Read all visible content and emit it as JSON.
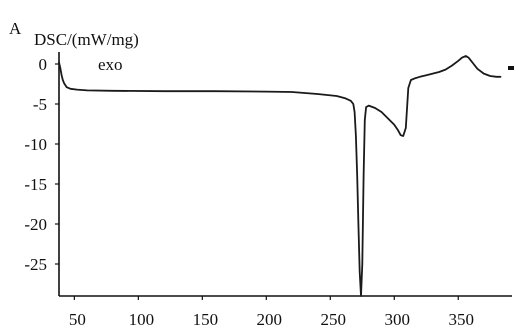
{
  "chart_data": {
    "type": "line",
    "panel_label": "A",
    "ylabel": "DSC/(mW/mg)",
    "annotation": "exo",
    "xlabel": "",
    "xlim": [
      38,
      392
    ],
    "ylim": [
      -29,
      1.5
    ],
    "xticks": [
      50,
      100,
      150,
      200,
      250,
      300,
      350
    ],
    "yticks": [
      0,
      -5,
      -10,
      -15,
      -20,
      -25
    ],
    "grid": false,
    "line_color": "#1a1a1a",
    "series": [
      {
        "x": [
          38,
          39,
          40,
          41,
          42,
          44,
          47,
          52,
          60,
          80,
          120,
          160,
          200,
          220,
          240,
          255,
          262,
          266,
          268,
          269,
          270,
          271,
          272,
          273,
          274,
          275,
          276,
          277,
          278,
          279,
          280,
          285,
          290,
          295,
          300,
          303,
          305,
          307,
          309,
          311,
          313,
          316,
          320,
          325,
          330,
          335,
          340,
          345,
          350,
          353,
          356,
          358,
          360,
          362,
          365,
          370,
          375,
          380,
          383
        ],
        "y": [
          0.2,
          -0.5,
          -1.4,
          -2.0,
          -2.4,
          -2.9,
          -3.1,
          -3.2,
          -3.3,
          -3.35,
          -3.4,
          -3.4,
          -3.45,
          -3.5,
          -3.75,
          -4.0,
          -4.3,
          -4.6,
          -5.0,
          -6.0,
          -9.0,
          -14.0,
          -20.0,
          -26.0,
          -29.0,
          -25.0,
          -14.0,
          -7.0,
          -5.4,
          -5.3,
          -5.2,
          -5.5,
          -6.0,
          -6.8,
          -7.6,
          -8.3,
          -8.9,
          -9.0,
          -8.0,
          -3.0,
          -2.0,
          -1.8,
          -1.6,
          -1.4,
          -1.2,
          -1.0,
          -0.7,
          -0.2,
          0.4,
          0.8,
          1.0,
          0.8,
          0.4,
          0.0,
          -0.6,
          -1.2,
          -1.5,
          -1.6,
          -1.6
        ]
      }
    ]
  }
}
